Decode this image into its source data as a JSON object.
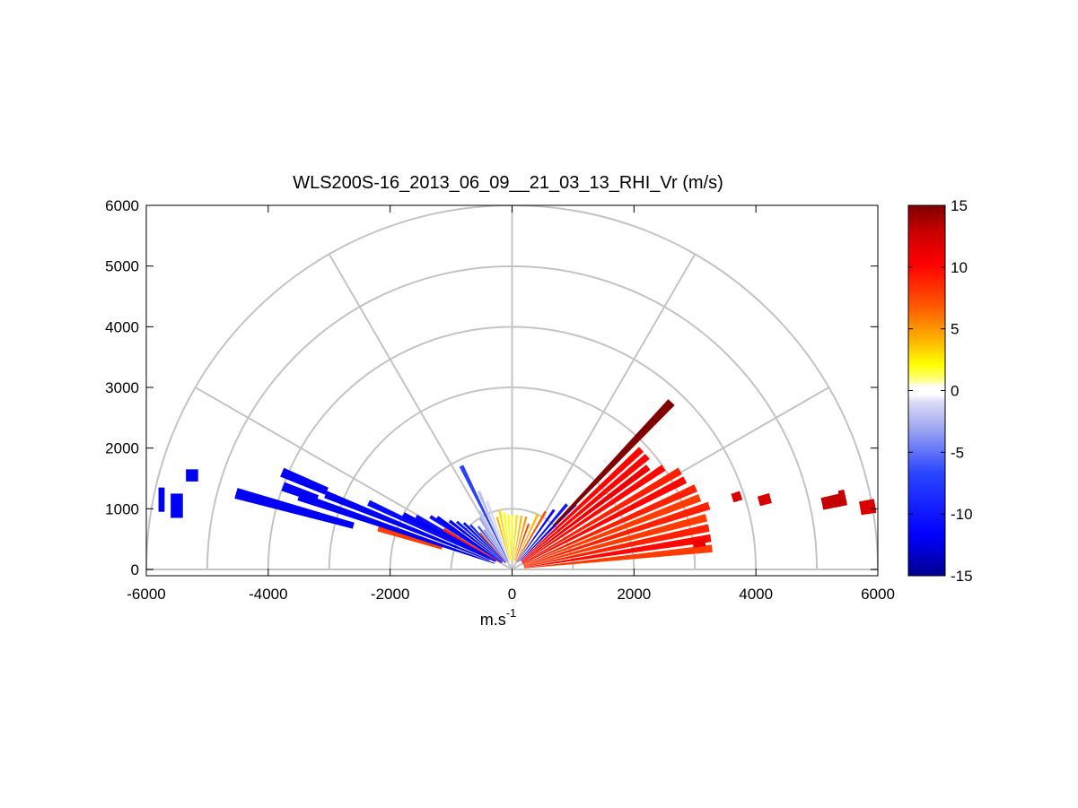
{
  "chart_data": {
    "type": "polar-rhi",
    "title": "WLS200S-16_2013_06_09__21_03_13_RHI_Vr (m/s)",
    "xlabel_main": "m.s",
    "xlabel_sup": "-1",
    "xlim": [
      -6000,
      6000
    ],
    "ylim": [
      0,
      6000
    ],
    "xticks": [
      -6000,
      -4000,
      -2000,
      0,
      2000,
      4000,
      6000
    ],
    "yticks": [
      0,
      1000,
      2000,
      3000,
      4000,
      5000,
      6000
    ],
    "grid_rings": [
      1000,
      2000,
      3000,
      4000,
      5000,
      6000
    ],
    "grid_spokes_deg": [
      30,
      60,
      90,
      120,
      150
    ],
    "colorbar": {
      "min": -15,
      "max": 15,
      "ticks": [
        -15,
        -10,
        -5,
        0,
        5,
        10,
        15
      ]
    },
    "rays": [
      {
        "az": 164.5,
        "r0": 2700,
        "r1": 4700,
        "vr": -12
      },
      {
        "az": 163.0,
        "r0": 1200,
        "r1": 2300,
        "vr": 8
      },
      {
        "az": 161.0,
        "r0": 300,
        "r1": 3700,
        "vr": -12
      },
      {
        "az": 160.0,
        "r0": 3400,
        "r1": 4000,
        "vr": -12
      },
      {
        "az": 158.0,
        "r0": 400,
        "r1": 3300,
        "vr": -12
      },
      {
        "az": 157.0,
        "r0": 3300,
        "r1": 4100,
        "vr": -12
      },
      {
        "az": 155.0,
        "r0": 300,
        "r1": 2600,
        "vr": -11
      },
      {
        "az": 153.0,
        "r0": 300,
        "r1": 2000,
        "vr": -12
      },
      {
        "az": 151.0,
        "r0": 300,
        "r1": 1800,
        "vr": -11
      },
      {
        "az": 149.5,
        "r0": 200,
        "r1": 1300,
        "vr": 9
      },
      {
        "az": 147.0,
        "r0": 200,
        "r1": 1600,
        "vr": -11
      },
      {
        "az": 145.0,
        "r0": 200,
        "r1": 1500,
        "vr": -12
      },
      {
        "az": 142.0,
        "r0": 200,
        "r1": 1300,
        "vr": -12
      },
      {
        "az": 139.0,
        "r0": 200,
        "r1": 1200,
        "vr": -10
      },
      {
        "az": 136.0,
        "r0": 150,
        "r1": 1100,
        "vr": -11
      },
      {
        "az": 133.0,
        "r0": 150,
        "r1": 1000,
        "vr": -9
      },
      {
        "az": 131.0,
        "r0": 150,
        "r1": 800,
        "vr": 7
      },
      {
        "az": 128.0,
        "r0": 150,
        "r1": 900,
        "vr": -6
      },
      {
        "az": 125.0,
        "r0": 150,
        "r1": 800,
        "vr": -4
      },
      {
        "az": 122.0,
        "r0": 150,
        "r1": 1000,
        "vr": -3
      },
      {
        "az": 119.0,
        "r0": 150,
        "r1": 1100,
        "vr": -2
      },
      {
        "az": 116.0,
        "r0": 150,
        "r1": 1900,
        "vr": -7
      },
      {
        "az": 113.0,
        "r0": 150,
        "r1": 1400,
        "vr": -2
      },
      {
        "az": 110.0,
        "r0": 150,
        "r1": 1200,
        "vr": -1
      },
      {
        "az": 106.0,
        "r0": 150,
        "r1": 900,
        "vr": 4
      },
      {
        "az": 102.0,
        "r0": 150,
        "r1": 1000,
        "vr": 3
      },
      {
        "az": 98.0,
        "r0": 150,
        "r1": 950,
        "vr": 2
      },
      {
        "az": 94.0,
        "r0": 150,
        "r1": 900,
        "vr": 2
      },
      {
        "az": 90.0,
        "r0": 150,
        "r1": 900,
        "vr": 2
      },
      {
        "az": 85.0,
        "r0": 150,
        "r1": 900,
        "vr": 3
      },
      {
        "az": 80.0,
        "r0": 150,
        "r1": 900,
        "vr": 4
      },
      {
        "az": 75.0,
        "r0": 150,
        "r1": 900,
        "vr": 5
      },
      {
        "az": 70.0,
        "r0": 150,
        "r1": 800,
        "vr": 8
      },
      {
        "az": 65.0,
        "r0": 150,
        "r1": 1000,
        "vr": 4
      },
      {
        "az": 60.0,
        "r0": 150,
        "r1": 1100,
        "vr": 7
      },
      {
        "az": 55.0,
        "r0": 150,
        "r1": 1200,
        "vr": -11
      },
      {
        "az": 50.0,
        "r0": 150,
        "r1": 1400,
        "vr": -10
      },
      {
        "az": 46.0,
        "r0": 200,
        "r1": 1500,
        "vr": -12
      },
      {
        "az": 43.0,
        "r0": 200,
        "r1": 2900,
        "vr": 10
      },
      {
        "az": 40.0,
        "r0": 200,
        "r1": 2900,
        "vr": 10
      },
      {
        "az": 37.0,
        "r0": 200,
        "r1": 2800,
        "vr": 11
      },
      {
        "az": 34.0,
        "r0": 200,
        "r1": 3000,
        "vr": 10
      },
      {
        "az": 30.5,
        "r0": 200,
        "r1": 3200,
        "vr": 9
      },
      {
        "az": 27.5,
        "r0": 200,
        "r1": 3200,
        "vr": 10
      },
      {
        "az": 24.0,
        "r0": 200,
        "r1": 3300,
        "vr": 9
      },
      {
        "az": 21.0,
        "r0": 200,
        "r1": 3300,
        "vr": 8
      },
      {
        "az": 18.0,
        "r0": 200,
        "r1": 3400,
        "vr": 9
      },
      {
        "az": 15.0,
        "r0": 200,
        "r1": 3300,
        "vr": 8
      },
      {
        "az": 12.0,
        "r0": 200,
        "r1": 3300,
        "vr": 9
      },
      {
        "az": 9.0,
        "r0": 200,
        "r1": 3300,
        "vr": 10
      },
      {
        "az": 6.0,
        "r0": 200,
        "r1": 3300,
        "vr": 8
      },
      {
        "az": 8.0,
        "r0": 3000,
        "r1": 3200,
        "vr": 11
      },
      {
        "az": 46.5,
        "r0": 1000,
        "r1": 3800,
        "vr": 15
      },
      {
        "az": 18.0,
        "r0": 3800,
        "r1": 3950,
        "vr": 12
      },
      {
        "az": 15.5,
        "r0": 4200,
        "r1": 4400,
        "vr": 12
      },
      {
        "az": 12.0,
        "r0": 5200,
        "r1": 5600,
        "vr": 13
      },
      {
        "az": 10.0,
        "r0": 5800,
        "r1": 6050,
        "vr": 12
      },
      {
        "az": 12.5,
        "r0": 5500,
        "r1": 5600,
        "vr": 13
      }
    ],
    "patches": [
      {
        "x0": -5350,
        "x1": -5150,
        "y0": 1450,
        "y1": 1650,
        "vr": -12
      },
      {
        "x0": -5800,
        "x1": -5700,
        "y0": 950,
        "y1": 1350,
        "vr": -12
      },
      {
        "x0": -5600,
        "x1": -5400,
        "y0": 850,
        "y1": 1250,
        "vr": -12
      }
    ]
  }
}
